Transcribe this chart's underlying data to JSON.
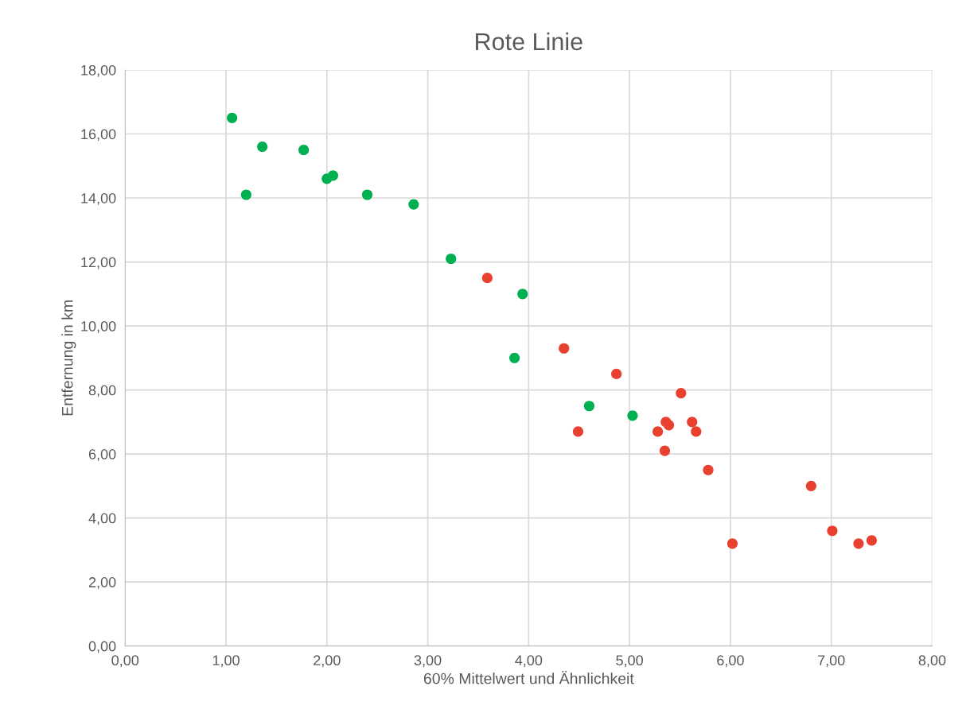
{
  "chart_data": {
    "type": "scatter",
    "title": "Rote Linie",
    "xlabel": "60% Mittelwert und Ähnlichkeit",
    "ylabel": "Entfernung in km",
    "series": [
      {
        "color": "#00b050",
        "x": [
          1.06,
          1.2,
          1.36,
          1.77,
          2.0,
          2.06,
          2.4,
          2.86,
          3.23,
          3.94,
          3.86,
          4.6,
          5.03
        ],
        "values": [
          16.5,
          14.1,
          15.6,
          15.5,
          14.6,
          14.7,
          14.1,
          13.8,
          12.1,
          11.0,
          9.0,
          7.5,
          7.2
        ]
      },
      {
        "color": "#e8412f",
        "x": [
          3.59,
          4.35,
          4.49,
          4.87,
          5.28,
          5.51,
          5.36,
          5.39,
          5.35,
          5.62,
          5.66,
          5.78,
          6.02,
          6.8,
          7.01,
          7.27,
          7.4
        ],
        "values": [
          11.5,
          9.3,
          6.7,
          8.5,
          6.7,
          7.9,
          7.0,
          6.9,
          6.1,
          7.0,
          6.7,
          5.5,
          3.2,
          5.0,
          3.6,
          3.2,
          3.3
        ]
      }
    ],
    "xlim": [
      0,
      8
    ],
    "ylim": [
      0,
      18
    ],
    "xticks": [
      {
        "value": 0,
        "label": "0,00"
      },
      {
        "value": 1,
        "label": "1,00"
      },
      {
        "value": 2,
        "label": "2,00"
      },
      {
        "value": 3,
        "label": "3,00"
      },
      {
        "value": 4,
        "label": "4,00"
      },
      {
        "value": 5,
        "label": "5,00"
      },
      {
        "value": 6,
        "label": "6,00"
      },
      {
        "value": 7,
        "label": "7,00"
      },
      {
        "value": 8,
        "label": "8,00"
      }
    ],
    "yticks": [
      {
        "value": 0,
        "label": "0,00"
      },
      {
        "value": 2,
        "label": "2,00"
      },
      {
        "value": 4,
        "label": "4,00"
      },
      {
        "value": 6,
        "label": "6,00"
      },
      {
        "value": 8,
        "label": "8,00"
      },
      {
        "value": 10,
        "label": "10,00"
      },
      {
        "value": 12,
        "label": "12,00"
      },
      {
        "value": 14,
        "label": "14,00"
      },
      {
        "value": 16,
        "label": "16,00"
      },
      {
        "value": 18,
        "label": "18,00"
      }
    ],
    "grid": true,
    "marker": "circle"
  }
}
